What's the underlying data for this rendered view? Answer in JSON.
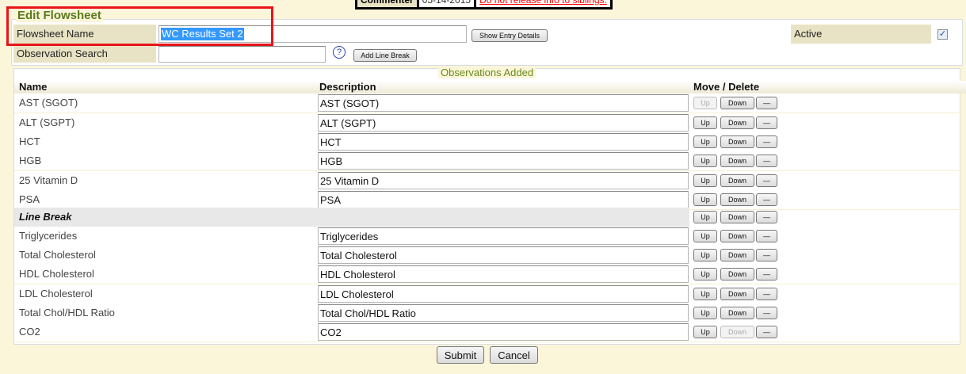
{
  "banner": {
    "label": "Commenter",
    "date": "05-14-2015",
    "warning": "Do not release info to siblings."
  },
  "form": {
    "title": "Edit Flowsheet",
    "flowsheet_name_label": "Flowsheet Name",
    "flowsheet_name_value": "WC Results Set 2",
    "show_entry_details": "Show Entry Details",
    "active_label": "Active",
    "active_checked": true,
    "observation_search_label": "Observation Search",
    "observation_search_value": "",
    "help_icon": "?",
    "add_line_break": "Add Line Break"
  },
  "observations": {
    "title": "Observations Added",
    "columns": [
      "Name",
      "Description",
      "Move / Delete"
    ],
    "up_label": "Up",
    "down_label": "Down",
    "delete_label": "—",
    "rows": [
      {
        "name": "AST (SGOT)",
        "description": "AST (SGOT)",
        "up_enabled": false,
        "down_enabled": true
      },
      {
        "name": "ALT (SGPT)",
        "description": "ALT (SGPT)",
        "up_enabled": true,
        "down_enabled": true
      },
      {
        "name": "HCT",
        "description": "HCT",
        "up_enabled": true,
        "down_enabled": true
      },
      {
        "name": "HGB",
        "description": "HGB",
        "up_enabled": true,
        "down_enabled": true
      },
      {
        "name": "25 Vitamin D",
        "description": "25 Vitamin D",
        "up_enabled": true,
        "down_enabled": true
      },
      {
        "name": "PSA",
        "description": "PSA",
        "up_enabled": true,
        "down_enabled": true
      },
      {
        "name": "Line Break",
        "line_break": true,
        "up_enabled": true,
        "down_enabled": true
      },
      {
        "name": "Triglycerides",
        "description": "Triglycerides",
        "up_enabled": true,
        "down_enabled": true
      },
      {
        "name": "Total Cholesterol",
        "description": "Total Cholesterol",
        "up_enabled": true,
        "down_enabled": true
      },
      {
        "name": "HDL Cholesterol",
        "description": "HDL Cholesterol",
        "up_enabled": true,
        "down_enabled": true
      },
      {
        "name": "LDL Cholesterol",
        "description": "LDL Cholesterol",
        "up_enabled": true,
        "down_enabled": true
      },
      {
        "name": "Total Chol/HDL Ratio",
        "description": "Total Chol/HDL Ratio",
        "up_enabled": true,
        "down_enabled": true
      },
      {
        "name": "CO2",
        "description": "CO2",
        "up_enabled": true,
        "down_enabled": false
      }
    ]
  },
  "actions": {
    "submit": "Submit",
    "cancel": "Cancel"
  },
  "colors": {
    "highlight_box": "#e8141a",
    "legend": "#5a7a1e",
    "label_cell": "#e8e3c4",
    "page_bg": "#fbf6d9"
  }
}
